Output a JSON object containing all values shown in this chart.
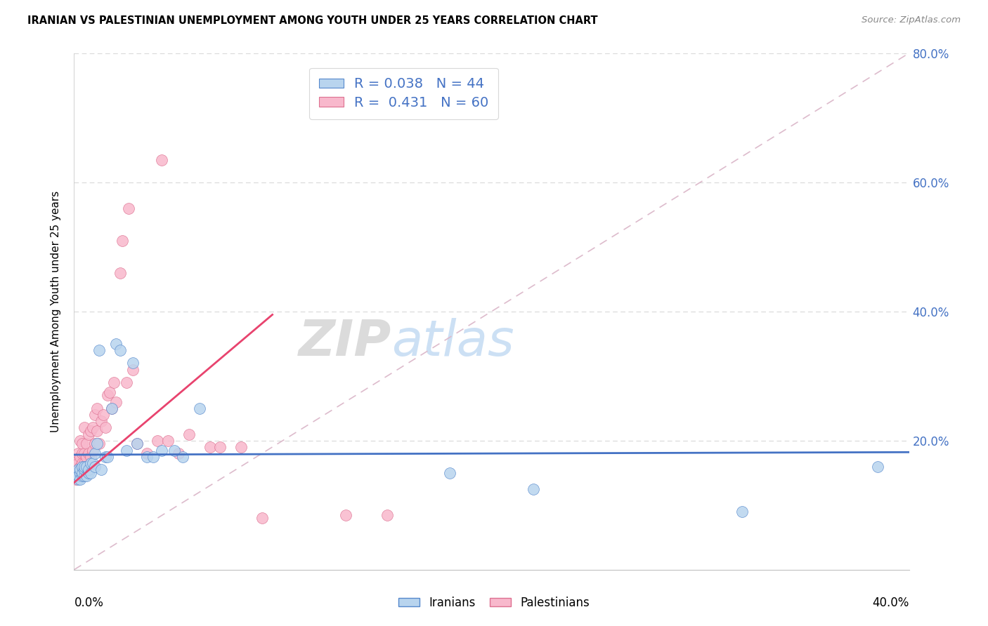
{
  "title": "IRANIAN VS PALESTINIAN UNEMPLOYMENT AMONG YOUTH UNDER 25 YEARS CORRELATION CHART",
  "source": "Source: ZipAtlas.com",
  "ylabel": "Unemployment Among Youth under 25 years",
  "xlim": [
    0.0,
    0.4
  ],
  "ylim": [
    0.0,
    0.8
  ],
  "iranian_color": "#b8d4ee",
  "iranian_edge_color": "#5588cc",
  "palestinian_color": "#f8b8cc",
  "palestinian_edge_color": "#dd7090",
  "iranian_line_color": "#4472c4",
  "palestinian_line_color": "#e8436e",
  "diagonal_color": "#ddaabb",
  "legend_R_iranian": "0.038",
  "legend_N_iranian": "44",
  "legend_R_palestinian": "0.431",
  "legend_N_palestinian": "60",
  "watermark_text": "ZIPatlas",
  "iran_trend": [
    0.0,
    0.4,
    0.178,
    0.182
  ],
  "pal_trend": [
    0.0,
    0.095,
    0.135,
    0.395
  ],
  "iranians_x": [
    0.001,
    0.001,
    0.002,
    0.002,
    0.002,
    0.003,
    0.003,
    0.003,
    0.004,
    0.004,
    0.004,
    0.005,
    0.005,
    0.005,
    0.006,
    0.006,
    0.007,
    0.007,
    0.008,
    0.008,
    0.009,
    0.01,
    0.01,
    0.011,
    0.012,
    0.013,
    0.015,
    0.016,
    0.018,
    0.02,
    0.022,
    0.025,
    0.028,
    0.03,
    0.035,
    0.038,
    0.042,
    0.048,
    0.052,
    0.06,
    0.18,
    0.22,
    0.32,
    0.385
  ],
  "iranians_y": [
    0.145,
    0.15,
    0.14,
    0.155,
    0.145,
    0.15,
    0.14,
    0.155,
    0.145,
    0.15,
    0.16,
    0.145,
    0.155,
    0.16,
    0.145,
    0.16,
    0.15,
    0.155,
    0.15,
    0.165,
    0.165,
    0.16,
    0.18,
    0.195,
    0.34,
    0.155,
    0.175,
    0.175,
    0.25,
    0.35,
    0.34,
    0.185,
    0.32,
    0.195,
    0.175,
    0.175,
    0.185,
    0.185,
    0.175,
    0.25,
    0.15,
    0.125,
    0.09,
    0.16
  ],
  "palestinians_x": [
    0.001,
    0.001,
    0.001,
    0.002,
    0.002,
    0.002,
    0.002,
    0.003,
    0.003,
    0.003,
    0.003,
    0.004,
    0.004,
    0.004,
    0.004,
    0.005,
    0.005,
    0.005,
    0.005,
    0.006,
    0.006,
    0.006,
    0.007,
    0.007,
    0.007,
    0.008,
    0.008,
    0.009,
    0.009,
    0.01,
    0.01,
    0.011,
    0.011,
    0.012,
    0.013,
    0.014,
    0.015,
    0.016,
    0.017,
    0.018,
    0.019,
    0.02,
    0.022,
    0.023,
    0.025,
    0.026,
    0.028,
    0.03,
    0.035,
    0.04,
    0.042,
    0.045,
    0.05,
    0.055,
    0.065,
    0.07,
    0.08,
    0.09,
    0.13,
    0.15
  ],
  "palestinians_y": [
    0.14,
    0.155,
    0.17,
    0.145,
    0.155,
    0.165,
    0.18,
    0.145,
    0.16,
    0.175,
    0.2,
    0.155,
    0.165,
    0.18,
    0.195,
    0.15,
    0.165,
    0.18,
    0.22,
    0.16,
    0.175,
    0.195,
    0.16,
    0.18,
    0.21,
    0.175,
    0.215,
    0.185,
    0.22,
    0.195,
    0.24,
    0.215,
    0.25,
    0.195,
    0.23,
    0.24,
    0.22,
    0.27,
    0.275,
    0.25,
    0.29,
    0.26,
    0.46,
    0.51,
    0.29,
    0.56,
    0.31,
    0.195,
    0.18,
    0.2,
    0.635,
    0.2,
    0.18,
    0.21,
    0.19,
    0.19,
    0.19,
    0.08,
    0.085,
    0.085
  ]
}
